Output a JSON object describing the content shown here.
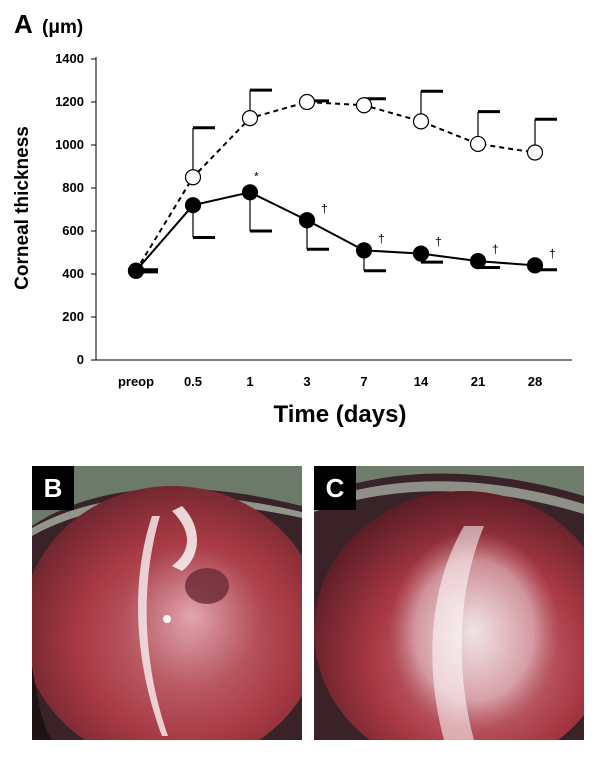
{
  "panels": {
    "a": "A",
    "b": "B",
    "c": "C"
  },
  "chart_data": {
    "type": "line",
    "title": "",
    "unit": "(μm)",
    "ylabel": "Corneal thickness",
    "xlabel": "Time (days)",
    "categories": [
      "preop",
      "0.5",
      "1",
      "3",
      "7",
      "14",
      "21",
      "28"
    ],
    "ylim": [
      0,
      1400
    ],
    "yticks": [
      0,
      200,
      400,
      600,
      800,
      1000,
      1200,
      1400
    ],
    "grid": false,
    "series": [
      {
        "style": "dashed-open-circle",
        "values": [
          415,
          850,
          1125,
          1200,
          1185,
          1110,
          1005,
          965
        ],
        "error_upper": [
          420,
          1080,
          1255,
          1205,
          1215,
          1250,
          1155,
          1120
        ]
      },
      {
        "style": "solid-filled-circle",
        "values": [
          415,
          720,
          780,
          650,
          510,
          495,
          460,
          440
        ],
        "error_lower": [
          410,
          570,
          600,
          515,
          415,
          455,
          430,
          420
        ]
      }
    ],
    "annotations": [
      {
        "category": "1",
        "value": 780,
        "text": "*"
      },
      {
        "category": "3",
        "value": 650,
        "text": "†"
      },
      {
        "category": "7",
        "value": 510,
        "text": "†"
      },
      {
        "category": "14",
        "value": 495,
        "text": "†"
      },
      {
        "category": "21",
        "value": 460,
        "text": "†"
      },
      {
        "category": "28",
        "value": 440,
        "text": "†"
      }
    ]
  }
}
